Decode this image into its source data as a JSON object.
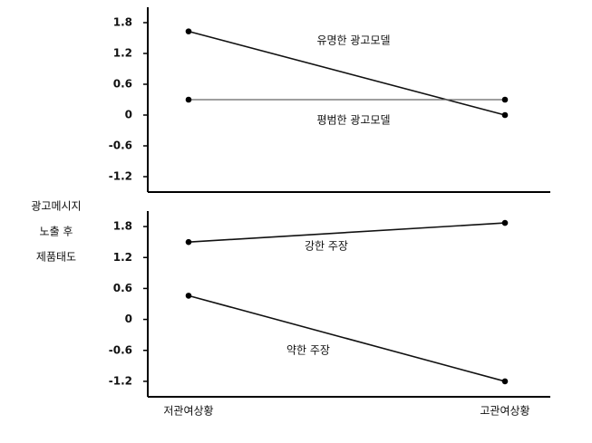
{
  "y_label": [
    "광고메시지",
    "노출 후",
    "제품태도"
  ],
  "chart_data": [
    {
      "type": "line",
      "series": [
        {
          "name": "유명한 광고모델",
          "color": "#111111",
          "values": [
            1.63,
            0
          ]
        },
        {
          "name": "평범한 광고모델",
          "color": "#666666",
          "values": [
            0.3,
            0.3
          ]
        }
      ],
      "ylim": [
        -1.5,
        2.1
      ],
      "yticks": [
        1.8,
        1.2,
        0.6,
        0,
        -0.6,
        -1.2
      ]
    },
    {
      "type": "line",
      "categories": [
        "저관여상황",
        "고관여상황"
      ],
      "series": [
        {
          "name": "강한 주장",
          "color": "#111111",
          "values": [
            1.5,
            1.87
          ]
        },
        {
          "name": "약한 주장",
          "color": "#111111",
          "values": [
            0.46,
            -1.2
          ]
        }
      ],
      "ylim": [
        -1.5,
        2.1
      ],
      "yticks": [
        1.8,
        1.2,
        0.6,
        0,
        -0.6,
        -1.2
      ]
    }
  ]
}
